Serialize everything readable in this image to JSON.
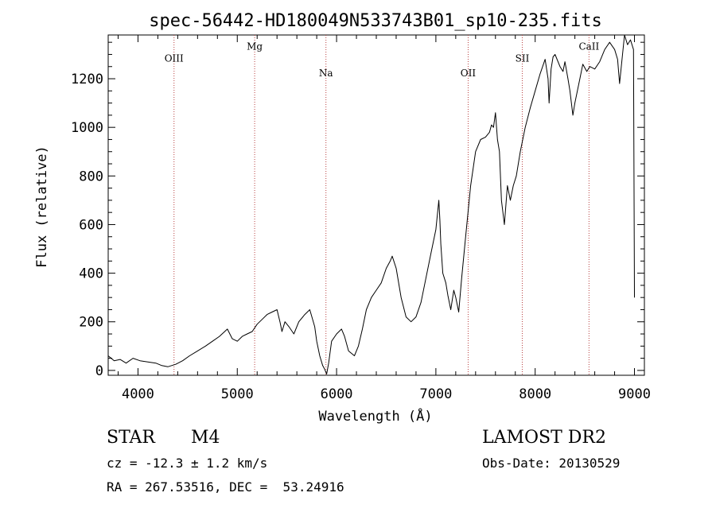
{
  "chart_data": {
    "type": "line",
    "title": "spec-56442-HD180049N533743B01_sp10-235.fits",
    "xlabel": "Wavelength (Å)",
    "ylabel": "Flux (relative)",
    "xlim": [
      3700,
      9100
    ],
    "ylim": [
      -20,
      1380
    ],
    "xticks": [
      4000,
      5000,
      6000,
      7000,
      8000,
      9000
    ],
    "yticks": [
      0,
      200,
      400,
      600,
      800,
      1000,
      1200
    ],
    "grid": false,
    "line_color": "#000000",
    "series": [
      {
        "x": [
          3700,
          3760,
          3820,
          3880,
          3950,
          4020,
          4100,
          4180,
          4240,
          4300,
          4380,
          4450,
          4520,
          4600,
          4680,
          4750,
          4820,
          4900,
          4950,
          5000,
          5050,
          5100,
          5150,
          5200,
          5250,
          5300,
          5350,
          5400,
          5430,
          5450,
          5480,
          5520,
          5570,
          5620,
          5680,
          5730,
          5780,
          5800,
          5830,
          5860,
          5880,
          5900,
          5920,
          5950,
          6000,
          6050,
          6080,
          6120,
          6180,
          6220,
          6260,
          6300,
          6350,
          6400,
          6450,
          6500,
          6540,
          6560,
          6600,
          6650,
          6700,
          6750,
          6800,
          6850,
          6900,
          6950,
          7000,
          7030,
          7040,
          7050,
          7070,
          7100,
          7120,
          7150,
          7180,
          7200,
          7230,
          7260,
          7300,
          7350,
          7400,
          7450,
          7500,
          7540,
          7560,
          7580,
          7600,
          7620,
          7640,
          7660,
          7690,
          7720,
          7750,
          7780,
          7810,
          7850,
          7900,
          7950,
          8000,
          8050,
          8100,
          8130,
          8140,
          8160,
          8180,
          8200,
          8250,
          8280,
          8300,
          8330,
          8350,
          8380,
          8400,
          8450,
          8480,
          8520,
          8550,
          8600,
          8650,
          8700,
          8750,
          8800,
          8830,
          8850,
          8880,
          8900,
          8930,
          8960,
          8990,
          9000
        ],
        "y": [
          60,
          40,
          45,
          30,
          50,
          40,
          35,
          30,
          20,
          15,
          25,
          40,
          60,
          80,
          100,
          120,
          140,
          170,
          130,
          120,
          140,
          150,
          160,
          190,
          210,
          230,
          240,
          250,
          200,
          160,
          200,
          180,
          150,
          200,
          230,
          250,
          180,
          120,
          60,
          20,
          5,
          -15,
          30,
          120,
          150,
          170,
          140,
          80,
          60,
          100,
          170,
          250,
          300,
          330,
          360,
          420,
          450,
          470,
          420,
          300,
          220,
          200,
          220,
          280,
          380,
          480,
          580,
          700,
          620,
          520,
          400,
          360,
          310,
          250,
          330,
          300,
          240,
          380,
          550,
          760,
          900,
          950,
          960,
          980,
          1010,
          1000,
          1060,
          950,
          900,
          700,
          600,
          760,
          700,
          760,
          800,
          900,
          1000,
          1080,
          1150,
          1220,
          1280,
          1200,
          1100,
          1240,
          1290,
          1300,
          1250,
          1230,
          1270,
          1200,
          1150,
          1050,
          1100,
          1200,
          1260,
          1230,
          1250,
          1240,
          1270,
          1320,
          1350,
          1320,
          1280,
          1180,
          1300,
          1380,
          1340,
          1360,
          1320,
          300
        ]
      }
    ],
    "line_annotations": [
      {
        "label": "OIII",
        "x": 4363,
        "label_y": 1270
      },
      {
        "label": "Mg",
        "x": 5175,
        "label_y": 1320
      },
      {
        "label": "Na",
        "x": 5893,
        "label_y": 1210
      },
      {
        "label": "OII",
        "x": 7325,
        "label_y": 1210
      },
      {
        "label": "SII",
        "x": 7870,
        "label_y": 1270
      },
      {
        "label": "CaII",
        "x": 8542,
        "label_y": 1320
      }
    ],
    "annotation_line_color": "#b84040"
  },
  "info": {
    "object_type": "STAR",
    "subclass": "M4",
    "survey": "LAMOST DR2",
    "cz": "cz = -12.3 ± 1.2 km/s",
    "obs_date": "Obs-Date: 20130529",
    "coords": "RA = 267.53516, DEC =  53.24916"
  }
}
